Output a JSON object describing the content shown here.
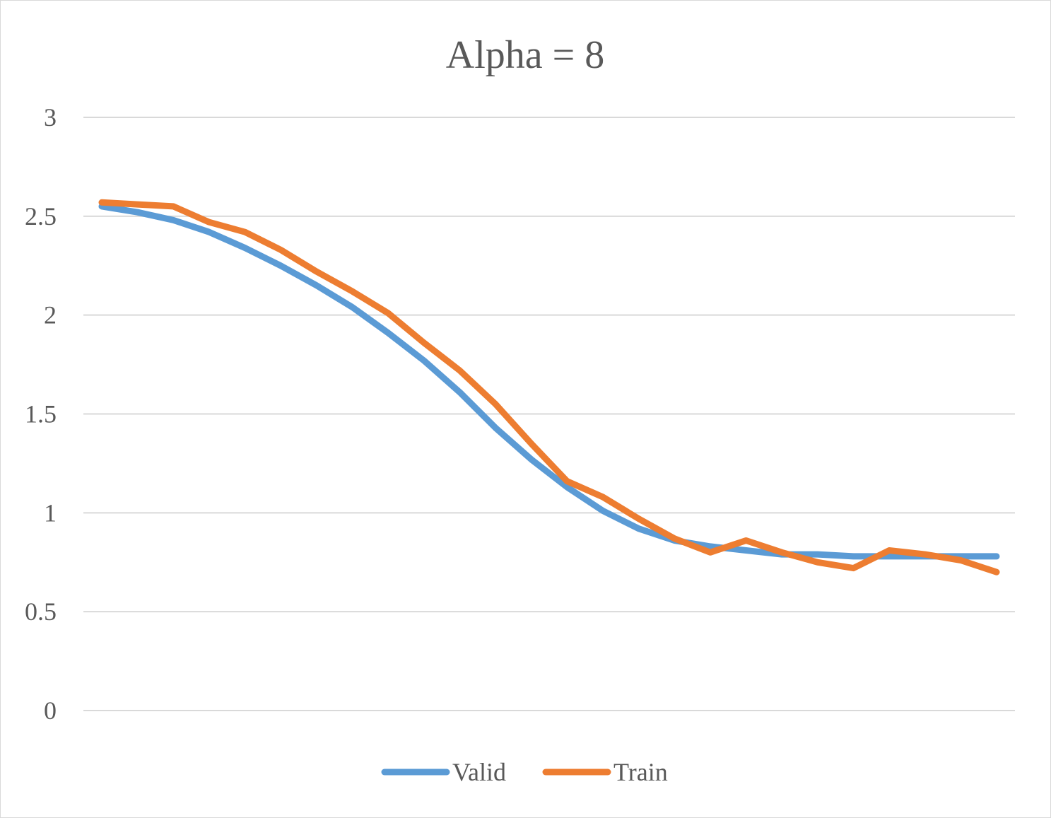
{
  "chart_data": {
    "type": "line",
    "title": "Alpha = 8",
    "xlabel": "",
    "ylabel": "",
    "ylim": [
      0,
      3
    ],
    "yticks": [
      "0",
      "0.5",
      "1",
      "1.5",
      "2",
      "2.5",
      "3"
    ],
    "ytick_values": [
      0,
      0.5,
      1,
      1.5,
      2,
      2.5,
      3
    ],
    "x": [
      1,
      2,
      3,
      4,
      5,
      6,
      7,
      8,
      9,
      10,
      11,
      12,
      13,
      14,
      15,
      16,
      17,
      18,
      19,
      20,
      21,
      22,
      23,
      24,
      25,
      26
    ],
    "grid": true,
    "legend_position": "bottom",
    "series": [
      {
        "name": "Valid",
        "color": "#5b9bd5",
        "values": [
          2.55,
          2.52,
          2.48,
          2.42,
          2.34,
          2.25,
          2.15,
          2.04,
          1.91,
          1.77,
          1.61,
          1.43,
          1.27,
          1.13,
          1.01,
          0.92,
          0.86,
          0.83,
          0.81,
          0.79,
          0.79,
          0.78,
          0.78,
          0.78,
          0.78,
          0.78
        ]
      },
      {
        "name": "Train",
        "color": "#ed7d31",
        "values": [
          2.57,
          2.56,
          2.55,
          2.47,
          2.42,
          2.33,
          2.22,
          2.12,
          2.01,
          1.86,
          1.72,
          1.55,
          1.35,
          1.16,
          1.08,
          0.97,
          0.87,
          0.8,
          0.86,
          0.8,
          0.75,
          0.72,
          0.81,
          0.79,
          0.76,
          0.7
        ]
      }
    ]
  }
}
